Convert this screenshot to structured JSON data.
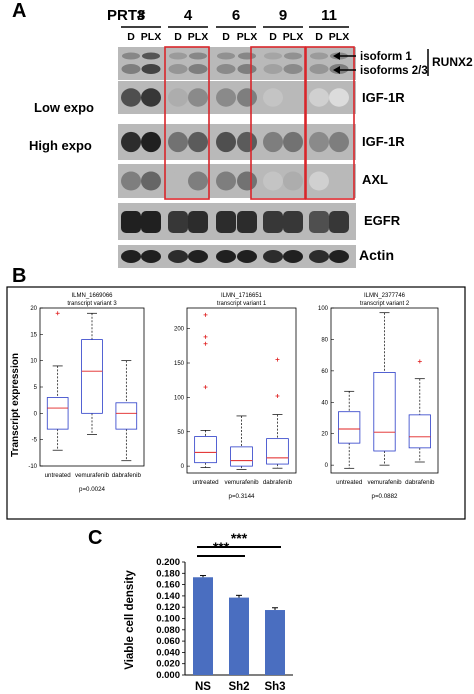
{
  "panel_a": {
    "letter": "A",
    "prt_label": "PRT#",
    "patients": [
      "3",
      "4",
      "6",
      "9",
      "11"
    ],
    "lane_d": "D",
    "lane_plx": "PLX",
    "row_labels": {
      "isoform1": "isoform 1",
      "isoforms23": "isoforms 2/3",
      "runx2": "RUNX2",
      "igf1r_low": "IGF-1R",
      "igf1r_high": "IGF-1R",
      "axl": "AXL",
      "egfr": "EGFR",
      "actin": "Actin",
      "low_expo": "Low expo",
      "high_expo": "High expo"
    },
    "highlight_color": "#d9262b"
  },
  "panel_b": {
    "letter": "B",
    "plots": [
      {
        "probe": "ILMN_1669066",
        "variant": "transcript variant 3",
        "pvalue": "p=0.0024",
        "yticks": [
          "-10",
          "-5",
          "0",
          "5",
          "10",
          "15",
          "20"
        ]
      },
      {
        "probe": "ILMN_1716651",
        "variant": "transcript variant 1",
        "pvalue": "p=0.3144",
        "yticks": [
          "0",
          "50",
          "100",
          "150",
          "200"
        ]
      },
      {
        "probe": "ILMN_2377746",
        "variant": "transcript variant 2",
        "pvalue": "p=0.0882",
        "yticks": [
          "0",
          "20",
          "40",
          "60",
          "80",
          "100"
        ]
      }
    ],
    "ylabel": "Transcript expression",
    "categories": [
      "untreated",
      "vemurafenib",
      "dabrafenib"
    ]
  },
  "panel_c": {
    "letter": "C",
    "ylabel": "Viable cell density",
    "significance": [
      "***",
      "***"
    ],
    "bar_color": "#4a6ec0"
  },
  "chart_data": [
    {
      "type": "box",
      "title": "ILMN_1669066\ntranscript variant 3",
      "ylabel": "Transcript expression",
      "categories": [
        "untreated",
        "vemurafenib",
        "dabrafenib"
      ],
      "ylim": [
        -10,
        20
      ],
      "boxes": [
        {
          "min": -7,
          "q1": -3,
          "median": 1,
          "q3": 3,
          "max": 9,
          "outliers": [
            19
          ]
        },
        {
          "min": -4,
          "q1": 0,
          "median": 8,
          "q3": 14,
          "max": 19,
          "outliers": []
        },
        {
          "min": -9,
          "q1": -3,
          "median": 0,
          "q3": 2,
          "max": 10,
          "outliers": []
        }
      ],
      "annotation": "p=0.0024"
    },
    {
      "type": "box",
      "title": "ILMN_1716651\ntranscript variant 1",
      "categories": [
        "untreated",
        "vemurafenib",
        "dabrafenib"
      ],
      "ylim": [
        -10,
        230
      ],
      "boxes": [
        {
          "min": -2,
          "q1": 5,
          "median": 20,
          "q3": 43,
          "max": 52,
          "outliers": [
            115,
            178,
            188,
            220
          ]
        },
        {
          "min": -5,
          "q1": 0,
          "median": 8,
          "q3": 28,
          "max": 73,
          "outliers": []
        },
        {
          "min": -3,
          "q1": 3,
          "median": 12,
          "q3": 40,
          "max": 75,
          "outliers": [
            102,
            155
          ]
        }
      ],
      "annotation": "p=0.3144"
    },
    {
      "type": "box",
      "title": "ILMN_2377746\ntranscript variant 2",
      "categories": [
        "untreated",
        "vemurafenib",
        "dabrafenib"
      ],
      "ylim": [
        -5,
        100
      ],
      "boxes": [
        {
          "min": -2,
          "q1": 14,
          "median": 23,
          "q3": 34,
          "max": 47,
          "outliers": []
        },
        {
          "min": 0,
          "q1": 9,
          "median": 21,
          "q3": 59,
          "max": 97,
          "outliers": []
        },
        {
          "min": 2,
          "q1": 11,
          "median": 18,
          "q3": 32,
          "max": 55,
          "outliers": [
            66
          ]
        }
      ],
      "annotation": "p=0.0882"
    },
    {
      "type": "bar",
      "ylabel": "Viable cell density",
      "categories": [
        "NS",
        "Sh2",
        "Sh3"
      ],
      "values": [
        0.173,
        0.137,
        0.115
      ],
      "errors": [
        0.003,
        0.004,
        0.004
      ],
      "ylim": [
        0,
        0.2
      ],
      "yticks": [
        "0.000",
        "0.020",
        "0.040",
        "0.060",
        "0.080",
        "0.100",
        "0.120",
        "0.140",
        "0.160",
        "0.180",
        "0.200"
      ],
      "significance": [
        {
          "from": "NS",
          "to": "Sh2",
          "label": "***"
        },
        {
          "from": "NS",
          "to": "Sh3",
          "label": "***"
        }
      ]
    }
  ]
}
